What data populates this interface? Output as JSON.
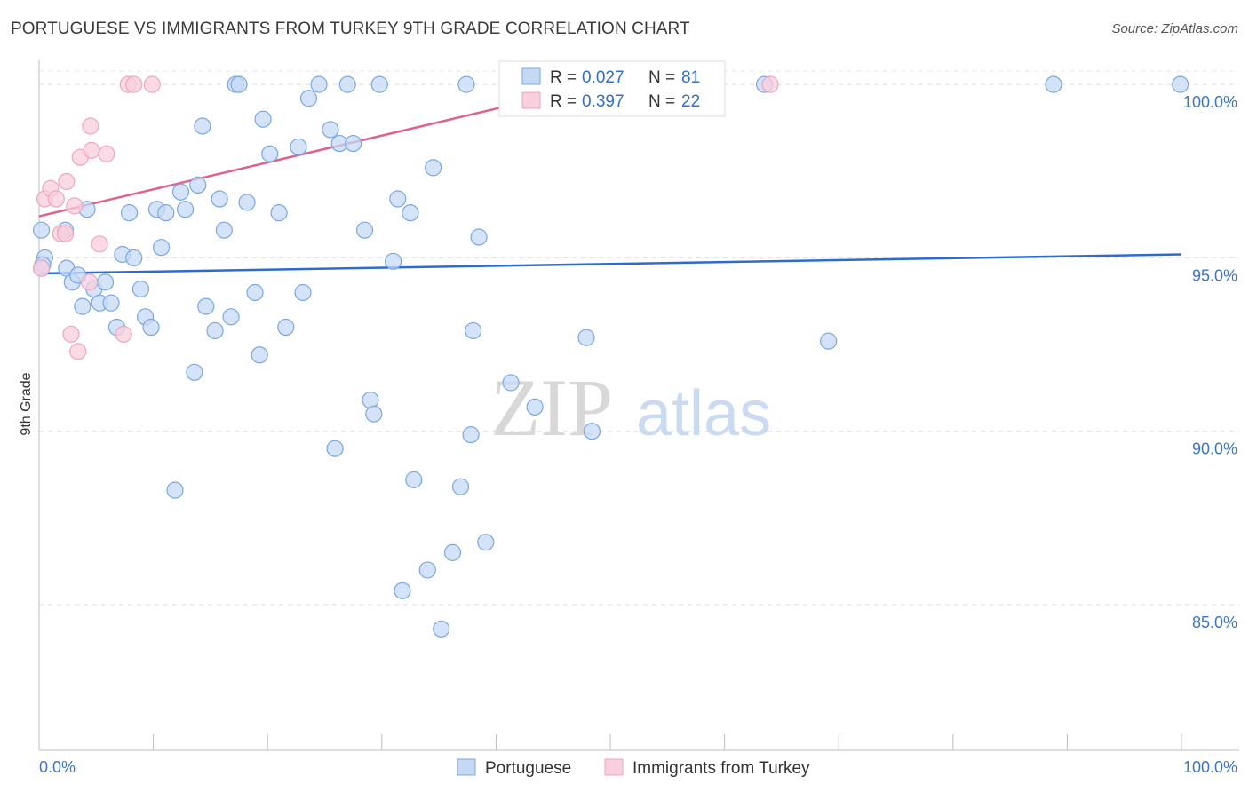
{
  "title": "PORTUGUESE VS IMMIGRANTS FROM TURKEY 9TH GRADE CORRELATION CHART",
  "source": "Source: ZipAtlas.com",
  "watermark": {
    "zip": "ZIP",
    "atlas": "atlas"
  },
  "chart_data": {
    "type": "scatter",
    "title": "PORTUGUESE VS IMMIGRANTS FROM TURKEY 9TH GRADE CORRELATION CHART",
    "xlabel": "",
    "ylabel": "9th Grade",
    "xlim": [
      0,
      100
    ],
    "ylim": [
      80.8,
      100.9
    ],
    "x_tick_labels": [
      "0.0%",
      "100.0%"
    ],
    "y_ticks": [
      100,
      95,
      90,
      85
    ],
    "y_tick_labels": [
      "100.0%",
      "95.0%",
      "90.0%",
      "85.0%"
    ],
    "grid": true,
    "legend_position": "top-center",
    "series": [
      {
        "name": "Portuguese",
        "color": "#7aa7e0",
        "fill": "#c5d9f5",
        "stats": {
          "r_label": "R =",
          "r": "0.027",
          "n_label": "N =",
          "n": "81"
        },
        "trend": {
          "x": [
            0,
            100
          ],
          "y": [
            94.55,
            95.1
          ],
          "color": "#2d6ccf"
        },
        "points": [
          [
            0.2,
            95.8
          ],
          [
            0.5,
            95.0
          ],
          [
            0.3,
            94.8
          ],
          [
            0.2,
            94.7
          ],
          [
            2.3,
            95.8
          ],
          [
            2.4,
            94.7
          ],
          [
            2.9,
            94.3
          ],
          [
            3.4,
            94.5
          ],
          [
            3.8,
            93.6
          ],
          [
            4.2,
            96.4
          ],
          [
            4.8,
            94.1
          ],
          [
            5.3,
            93.7
          ],
          [
            5.8,
            94.3
          ],
          [
            6.3,
            93.7
          ],
          [
            6.8,
            93.0
          ],
          [
            7.3,
            95.1
          ],
          [
            7.9,
            96.3
          ],
          [
            8.3,
            95.0
          ],
          [
            8.9,
            94.1
          ],
          [
            9.3,
            93.3
          ],
          [
            9.8,
            93.0
          ],
          [
            10.3,
            96.4
          ],
          [
            10.7,
            95.3
          ],
          [
            11.1,
            96.3
          ],
          [
            11.9,
            88.3
          ],
          [
            12.4,
            96.9
          ],
          [
            12.8,
            96.4
          ],
          [
            13.6,
            91.7
          ],
          [
            13.9,
            97.1
          ],
          [
            14.3,
            98.8
          ],
          [
            14.6,
            93.6
          ],
          [
            15.4,
            92.9
          ],
          [
            15.8,
            96.7
          ],
          [
            16.2,
            95.8
          ],
          [
            16.8,
            93.3
          ],
          [
            17.2,
            100.0
          ],
          [
            17.5,
            100.0
          ],
          [
            18.2,
            96.6
          ],
          [
            18.9,
            94.0
          ],
          [
            19.3,
            92.2
          ],
          [
            19.6,
            99.0
          ],
          [
            20.2,
            98.0
          ],
          [
            21.0,
            96.3
          ],
          [
            21.6,
            93.0
          ],
          [
            22.7,
            98.2
          ],
          [
            23.1,
            94.0
          ],
          [
            23.6,
            99.6
          ],
          [
            24.5,
            100.0
          ],
          [
            25.5,
            98.7
          ],
          [
            25.9,
            89.5
          ],
          [
            26.3,
            98.3
          ],
          [
            27.0,
            100.0
          ],
          [
            27.5,
            98.3
          ],
          [
            28.5,
            95.8
          ],
          [
            29.0,
            90.9
          ],
          [
            29.3,
            90.5
          ],
          [
            29.8,
            100.0
          ],
          [
            31.0,
            94.9
          ],
          [
            31.4,
            96.7
          ],
          [
            31.8,
            85.4
          ],
          [
            32.5,
            96.3
          ],
          [
            32.8,
            88.6
          ],
          [
            34.0,
            86.0
          ],
          [
            34.5,
            97.6
          ],
          [
            35.2,
            84.3
          ],
          [
            36.2,
            86.5
          ],
          [
            36.9,
            88.4
          ],
          [
            37.4,
            100.0
          ],
          [
            37.8,
            89.9
          ],
          [
            38.0,
            92.9
          ],
          [
            38.5,
            95.6
          ],
          [
            39.1,
            86.8
          ],
          [
            41.3,
            91.4
          ],
          [
            43.4,
            90.7
          ],
          [
            47.9,
            92.7
          ],
          [
            48.4,
            90.0
          ],
          [
            63.5,
            100.0
          ],
          [
            69.1,
            92.6
          ],
          [
            88.8,
            100.0
          ],
          [
            99.9,
            100.0
          ],
          [
            44.0,
            100.0
          ]
        ]
      },
      {
        "name": "Immigrants from Turkey",
        "color": "#eea6bd",
        "fill": "#f8cfdc",
        "stats": {
          "r_label": "R =",
          "r": "0.397",
          "n_label": "N =",
          "n": "22"
        },
        "trend": {
          "x": [
            0,
            49
          ],
          "y": [
            96.2,
            100.0
          ],
          "color": "#e0608f"
        },
        "points": [
          [
            0.2,
            94.7
          ],
          [
            0.5,
            96.7
          ],
          [
            1.0,
            97.0
          ],
          [
            1.5,
            96.7
          ],
          [
            1.9,
            95.7
          ],
          [
            2.3,
            95.7
          ],
          [
            2.4,
            97.2
          ],
          [
            2.8,
            92.8
          ],
          [
            3.1,
            96.5
          ],
          [
            3.4,
            92.3
          ],
          [
            3.6,
            97.9
          ],
          [
            4.4,
            94.3
          ],
          [
            4.5,
            98.8
          ],
          [
            4.6,
            98.1
          ],
          [
            5.3,
            95.4
          ],
          [
            5.9,
            98.0
          ],
          [
            7.4,
            92.8
          ],
          [
            7.8,
            100.0
          ],
          [
            8.3,
            100.0
          ],
          [
            9.9,
            100.0
          ],
          [
            51.2,
            100.0
          ],
          [
            64.0,
            100.0
          ]
        ]
      }
    ]
  }
}
